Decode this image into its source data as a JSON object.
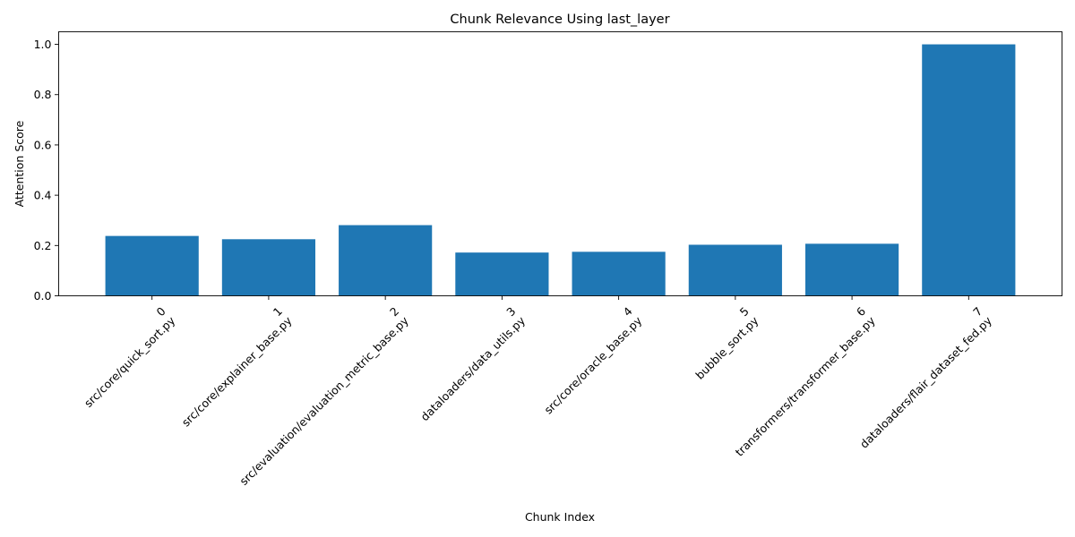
{
  "chart_data": {
    "type": "bar",
    "title": "Chunk Relevance Using last_layer",
    "xlabel": "Chunk Index",
    "ylabel": "Attention Score",
    "categories": [
      "0\nsrc/core/quick_sort.py",
      "1\nsrc/core/explainer_base.py",
      "2\nsrc/evaluation/evaluation_metric_base.py",
      "3\ndataloaders/data_utils.py",
      "4\nsrc/core/oracle_base.py",
      "5\nbubble_sort.py",
      "6\ntransformers/transformer_base.py",
      "7\ndataloaders/flair_dataset_fed.py"
    ],
    "values": [
      0.238,
      0.225,
      0.281,
      0.172,
      0.175,
      0.203,
      0.207,
      1.0
    ],
    "ylim": [
      0,
      1.05
    ],
    "yticks": [
      0.0,
      0.2,
      0.4,
      0.6,
      0.8,
      1.0
    ],
    "ytick_labels": [
      "0.0",
      "0.2",
      "0.4",
      "0.6",
      "0.8",
      "1.0"
    ],
    "bar_color": "#1f77b4",
    "grid": false,
    "legend": null
  }
}
